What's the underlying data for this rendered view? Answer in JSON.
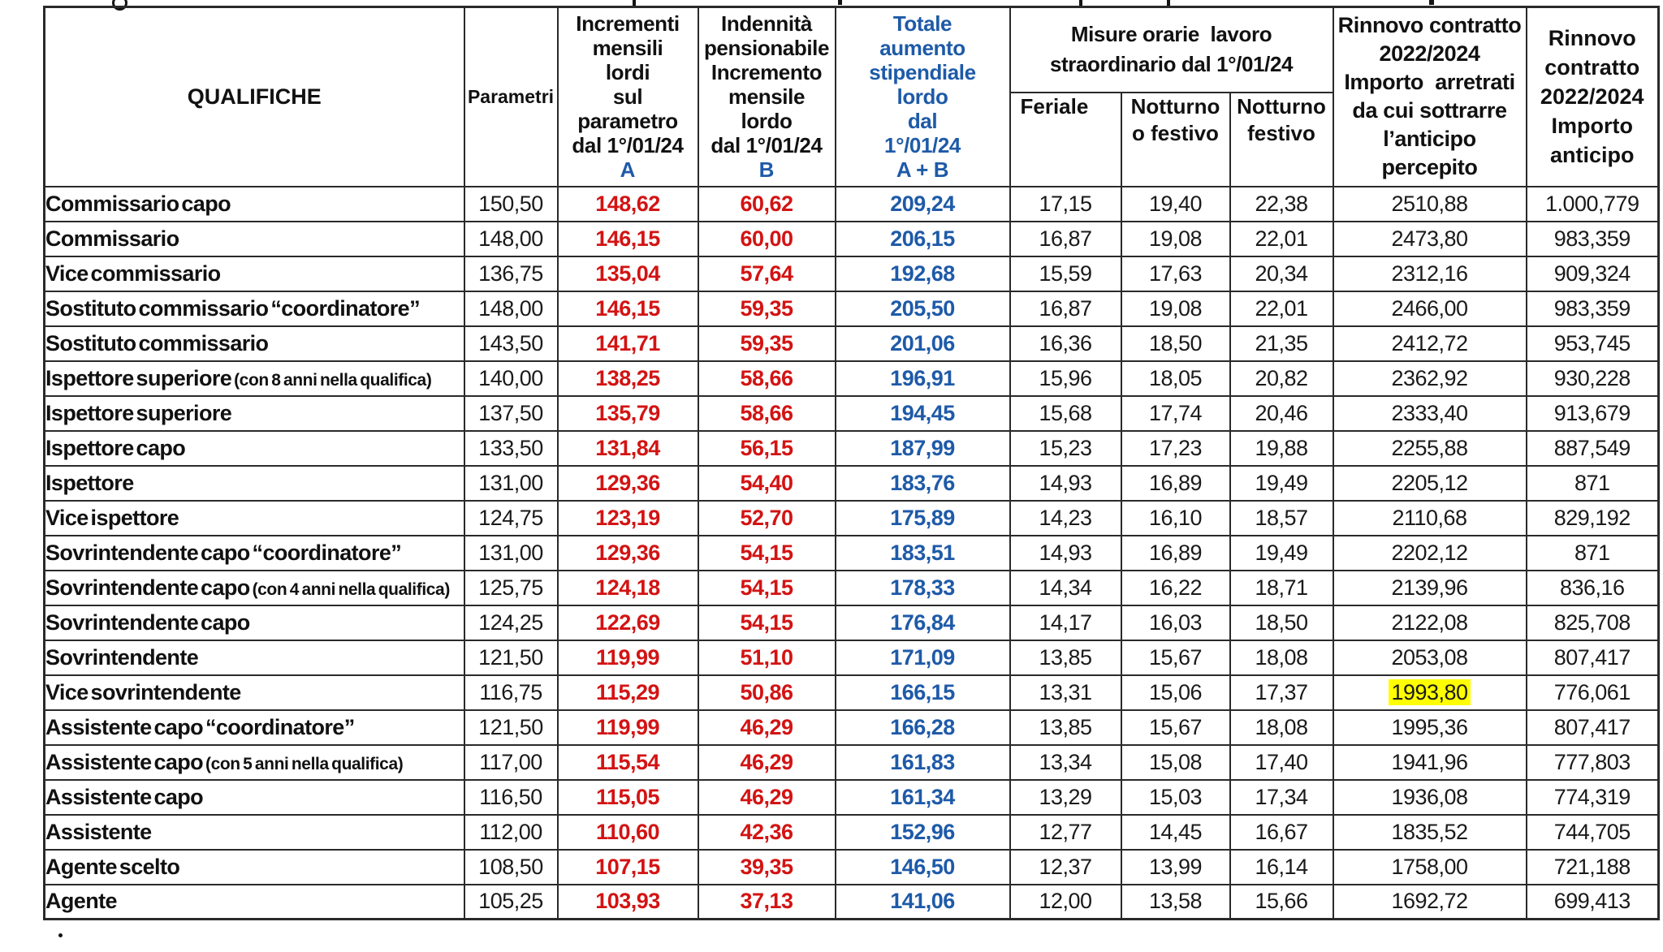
{
  "colors": {
    "accent_blue": "#1e5aa8",
    "accent_red": "#d31313",
    "highlight_yellow": "#ffff00",
    "border": "#2a2a2a"
  },
  "table": {
    "headers": {
      "qualifiche": "QUALIFICHE",
      "parametri": "Parametri",
      "incrementi": "Incrementi\nmensili\nlordi\nsul\nparametro\ndal 1°/01/24",
      "incrementi_label": "A",
      "indennita": "Indennità\npensionabile\nIncremento\nmensile\nlordo\ndal 1°/01/24",
      "indennita_label": "B",
      "totale": "Totale\naumento\nstipendiale\nlordo\ndal\n1°/01/24\nA + B",
      "misure_group": "Misure orarie  lavoro\nstraordinario dal 1°/01/24",
      "feriale": "Feriale",
      "notturno_o_festivo": "Notturno\no festivo",
      "notturno_festivo": "Notturno\nfestivo",
      "arretrati": "Rinnovo contratto\n2022/2024\nImporto  arretrati\nda cui sottrarre\nl’anticipo\npercepito",
      "anticipo": "Rinnovo\ncontratto\n2022/2024\nImporto\nanticipo"
    },
    "rows": [
      {
        "qualifica": "Commissario capo",
        "parametro": "150,50",
        "incremento_a": "148,62",
        "indennita_b": "60,62",
        "totale_ab": "209,24",
        "feriale": "17,15",
        "notturno_o_festivo": "19,40",
        "notturno_festivo": "22,38",
        "arretrati": "2510,88",
        "anticipo": "1.000,779"
      },
      {
        "qualifica": "Commissario",
        "parametro": "148,00",
        "incremento_a": "146,15",
        "indennita_b": "60,00",
        "totale_ab": "206,15",
        "feriale": "16,87",
        "notturno_o_festivo": "19,08",
        "notturno_festivo": "22,01",
        "arretrati": "2473,80",
        "anticipo": "983,359"
      },
      {
        "qualifica": "Vice commissario",
        "parametro": "136,75",
        "incremento_a": "135,04",
        "indennita_b": "57,64",
        "totale_ab": "192,68",
        "feriale": "15,59",
        "notturno_o_festivo": "17,63",
        "notturno_festivo": "20,34",
        "arretrati": "2312,16",
        "anticipo": "909,324"
      },
      {
        "qualifica": "Sostituto commissario “coordinatore”",
        "parametro": "148,00",
        "incremento_a": "146,15",
        "indennita_b": "59,35",
        "totale_ab": "205,50",
        "feriale": "16,87",
        "notturno_o_festivo": "19,08",
        "notturno_festivo": "22,01",
        "arretrati": "2466,00",
        "anticipo": "983,359"
      },
      {
        "qualifica": "Sostituto commissario",
        "parametro": "143,50",
        "incremento_a": "141,71",
        "indennita_b": "59,35",
        "totale_ab": "201,06",
        "feriale": "16,36",
        "notturno_o_festivo": "18,50",
        "notturno_festivo": "21,35",
        "arretrati": "2412,72",
        "anticipo": "953,745"
      },
      {
        "qualifica": "Ispettore superiore",
        "note": "(con 8 anni nella qualifica)",
        "parametro": "140,00",
        "incremento_a": "138,25",
        "indennita_b": "58,66",
        "totale_ab": "196,91",
        "feriale": "15,96",
        "notturno_o_festivo": "18,05",
        "notturno_festivo": "20,82",
        "arretrati": "2362,92",
        "anticipo": "930,228"
      },
      {
        "qualifica": "Ispettore superiore",
        "parametro": "137,50",
        "incremento_a": "135,79",
        "indennita_b": "58,66",
        "totale_ab": "194,45",
        "feriale": "15,68",
        "notturno_o_festivo": "17,74",
        "notturno_festivo": "20,46",
        "arretrati": "2333,40",
        "anticipo": "913,679"
      },
      {
        "qualifica": "Ispettore capo",
        "parametro": "133,50",
        "incremento_a": "131,84",
        "indennita_b": "56,15",
        "totale_ab": "187,99",
        "feriale": "15,23",
        "notturno_o_festivo": "17,23",
        "notturno_festivo": "19,88",
        "arretrati": "2255,88",
        "anticipo": "887,549"
      },
      {
        "qualifica": "Ispettore",
        "parametro": "131,00",
        "incremento_a": "129,36",
        "indennita_b": "54,40",
        "totale_ab": "183,76",
        "feriale": "14,93",
        "notturno_o_festivo": "16,89",
        "notturno_festivo": "19,49",
        "arretrati": "2205,12",
        "anticipo": "871"
      },
      {
        "qualifica": "Vice ispettore",
        "parametro": "124,75",
        "incremento_a": "123,19",
        "indennita_b": "52,70",
        "totale_ab": "175,89",
        "feriale": "14,23",
        "notturno_o_festivo": "16,10",
        "notturno_festivo": "18,57",
        "arretrati": "2110,68",
        "anticipo": "829,192"
      },
      {
        "qualifica": "Sovrintendente capo “coordinatore”",
        "parametro": "131,00",
        "incremento_a": "129,36",
        "indennita_b": "54,15",
        "totale_ab": "183,51",
        "feriale": "14,93",
        "notturno_o_festivo": "16,89",
        "notturno_festivo": "19,49",
        "arretrati": "2202,12",
        "anticipo": "871"
      },
      {
        "qualifica": "Sovrintendente capo",
        "note": "(con 4 anni nella qualifica)",
        "parametro": "125,75",
        "incremento_a": "124,18",
        "indennita_b": "54,15",
        "totale_ab": "178,33",
        "feriale": "14,34",
        "notturno_o_festivo": "16,22",
        "notturno_festivo": "18,71",
        "arretrati": "2139,96",
        "anticipo": "836,16"
      },
      {
        "qualifica": "Sovrintendente  capo",
        "parametro": "124,25",
        "incremento_a": "122,69",
        "indennita_b": "54,15",
        "totale_ab": "176,84",
        "feriale": "14,17",
        "notturno_o_festivo": "16,03",
        "notturno_festivo": "18,50",
        "arretrati": "2122,08",
        "anticipo": "825,708"
      },
      {
        "qualifica": "Sovrintendente",
        "parametro": "121,50",
        "incremento_a": "119,99",
        "indennita_b": "51,10",
        "totale_ab": "171,09",
        "feriale": "13,85",
        "notturno_o_festivo": "15,67",
        "notturno_festivo": "18,08",
        "arretrati": "2053,08",
        "anticipo": "807,417"
      },
      {
        "qualifica": "Vice  sovrintendente",
        "parametro": "116,75",
        "incremento_a": "115,29",
        "indennita_b": "50,86",
        "totale_ab": "166,15",
        "feriale": "13,31",
        "notturno_o_festivo": "15,06",
        "notturno_festivo": "17,37",
        "arretrati": "1993,80",
        "anticipo": "776,061",
        "highlight": true
      },
      {
        "qualifica": "Assistente capo “coordinatore”",
        "parametro": "121,50",
        "incremento_a": "119,99",
        "indennita_b": "46,29",
        "totale_ab": "166,28",
        "feriale": "13,85",
        "notturno_o_festivo": "15,67",
        "notturno_festivo": "18,08",
        "arretrati": "1995,36",
        "anticipo": "807,417"
      },
      {
        "qualifica": "Assistente capo",
        "note": "(con 5 anni nella qualifica)",
        "parametro": "117,00",
        "incremento_a": "115,54",
        "indennita_b": "46,29",
        "totale_ab": "161,83",
        "feriale": "13,34",
        "notturno_o_festivo": "15,08",
        "notturno_festivo": "17,40",
        "arretrati": "1941,96",
        "anticipo": "777,803"
      },
      {
        "qualifica": "Assistente capo",
        "parametro": "116,50",
        "incremento_a": "115,05",
        "indennita_b": "46,29",
        "totale_ab": "161,34",
        "feriale": "13,29",
        "notturno_o_festivo": "15,03",
        "notturno_festivo": "17,34",
        "arretrati": "1936,08",
        "anticipo": "774,319"
      },
      {
        "qualifica": "Assistente",
        "parametro": "112,00",
        "incremento_a": "110,60",
        "indennita_b": "42,36",
        "totale_ab": "152,96",
        "feriale": "12,77",
        "notturno_o_festivo": "14,45",
        "notturno_festivo": "16,67",
        "arretrati": "1835,52",
        "anticipo": "744,705"
      },
      {
        "qualifica": "Agente scelto",
        "parametro": "108,50",
        "incremento_a": "107,15",
        "indennita_b": "39,35",
        "totale_ab": "146,50",
        "feriale": "12,37",
        "notturno_o_festivo": "13,99",
        "notturno_festivo": "16,14",
        "arretrati": "1758,00",
        "anticipo": "721,188"
      },
      {
        "qualifica": "Agente",
        "parametro": "105,25",
        "incremento_a": "103,93",
        "indennita_b": "37,13",
        "totale_ab": "141,06",
        "feriale": "12,00",
        "notturno_o_festivo": "13,58",
        "notturno_festivo": "15,66",
        "arretrati": "1692,72",
        "anticipo": "699,413"
      }
    ]
  }
}
